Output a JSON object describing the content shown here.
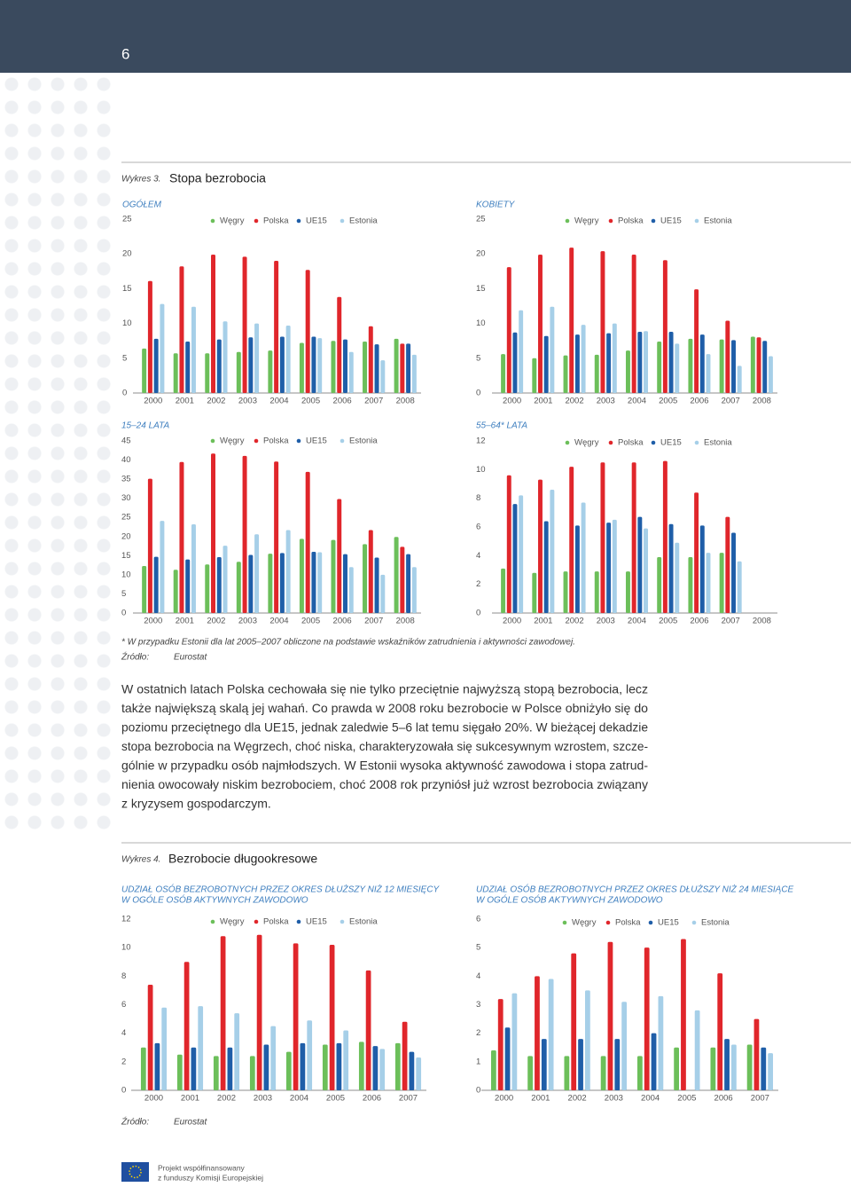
{
  "header": {
    "page_number": "6"
  },
  "figure3": {
    "label": "Wykres 3.",
    "title": "Stopa bezrobocia"
  },
  "chart_data": [
    {
      "type": "bar",
      "subtitle": [
        "OGÓŁEM"
      ],
      "categories": [
        "2000",
        "2001",
        "2002",
        "2003",
        "2004",
        "2005",
        "2006",
        "2007",
        "2008"
      ],
      "series": [
        {
          "name": "Węgry",
          "color": "#6cbf5a",
          "values": [
            6.4,
            5.7,
            5.7,
            5.9,
            6.1,
            7.2,
            7.5,
            7.4,
            7.8
          ]
        },
        {
          "name": "Polska",
          "color": "#e0262b",
          "values": [
            16.1,
            18.2,
            19.9,
            19.6,
            19.0,
            17.7,
            13.8,
            9.6,
            7.1
          ]
        },
        {
          "name": "UE15",
          "color": "#1f5ea8",
          "values": [
            7.8,
            7.4,
            7.7,
            8.0,
            8.1,
            8.1,
            7.7,
            7.0,
            7.1
          ]
        },
        {
          "name": "Estonia",
          "color": "#a6cfe8",
          "values": [
            12.8,
            12.4,
            10.3,
            10.0,
            9.7,
            7.9,
            5.9,
            4.7,
            5.5
          ]
        }
      ],
      "ylim": [
        0,
        25
      ],
      "yticks": [
        0,
        5,
        10,
        15,
        20,
        25
      ]
    },
    {
      "type": "bar",
      "subtitle": [
        "KOBIETY"
      ],
      "categories": [
        "2000",
        "2001",
        "2002",
        "2003",
        "2004",
        "2005",
        "2006",
        "2007",
        "2008"
      ],
      "series": [
        {
          "name": "Węgry",
          "color": "#6cbf5a",
          "values": [
            5.6,
            5.0,
            5.4,
            5.5,
            6.1,
            7.4,
            7.8,
            7.7,
            8.1
          ]
        },
        {
          "name": "Polska",
          "color": "#e0262b",
          "values": [
            18.1,
            19.9,
            20.9,
            20.4,
            19.9,
            19.1,
            14.9,
            10.4,
            8.0
          ]
        },
        {
          "name": "UE15",
          "color": "#1f5ea8",
          "values": [
            8.7,
            8.2,
            8.4,
            8.6,
            8.8,
            8.8,
            8.4,
            7.6,
            7.5
          ]
        },
        {
          "name": "Estonia",
          "color": "#a6cfe8",
          "values": [
            11.9,
            12.4,
            9.8,
            10.0,
            8.9,
            7.1,
            5.6,
            3.9,
            5.3
          ]
        }
      ],
      "ylim": [
        0,
        25
      ],
      "yticks": [
        0,
        5,
        10,
        15,
        20,
        25
      ]
    },
    {
      "type": "bar",
      "subtitle": [
        "15–24 LATA"
      ],
      "categories": [
        "2000",
        "2001",
        "2002",
        "2003",
        "2004",
        "2005",
        "2006",
        "2007",
        "2008"
      ],
      "series": [
        {
          "name": "Węgry",
          "color": "#6cbf5a",
          "values": [
            12.3,
            11.3,
            12.7,
            13.4,
            15.5,
            19.4,
            19.1,
            18.0,
            19.9
          ]
        },
        {
          "name": "Polska",
          "color": "#e0262b",
          "values": [
            35.1,
            39.5,
            41.7,
            41.1,
            39.6,
            36.9,
            29.8,
            21.7,
            17.3
          ]
        },
        {
          "name": "UE15",
          "color": "#1f5ea8",
          "values": [
            14.7,
            14.0,
            14.6,
            15.2,
            15.7,
            16.0,
            15.4,
            14.5,
            15.4
          ]
        },
        {
          "name": "Estonia",
          "color": "#a6cfe8",
          "values": [
            24.1,
            23.2,
            17.6,
            20.6,
            21.7,
            15.9,
            12.0,
            10.0,
            12.0
          ]
        }
      ],
      "ylim": [
        0,
        45
      ],
      "yticks": [
        0,
        5,
        10,
        15,
        20,
        25,
        30,
        35,
        40,
        45
      ]
    },
    {
      "type": "bar",
      "subtitle": [
        "55–64* LATA"
      ],
      "categories": [
        "2000",
        "2001",
        "2002",
        "2003",
        "2004",
        "2005",
        "2006",
        "2007",
        "2008"
      ],
      "series": [
        {
          "name": "Węgry",
          "color": "#6cbf5a",
          "values": [
            3.1,
            2.8,
            2.9,
            2.9,
            2.9,
            3.9,
            3.9,
            4.2,
            null
          ]
        },
        {
          "name": "Polska",
          "color": "#e0262b",
          "values": [
            9.6,
            9.3,
            10.2,
            10.5,
            10.5,
            10.6,
            8.4,
            6.7,
            null
          ]
        },
        {
          "name": "UE15",
          "color": "#1f5ea8",
          "values": [
            7.6,
            6.4,
            6.1,
            6.3,
            6.7,
            6.2,
            6.1,
            5.6,
            null
          ]
        },
        {
          "name": "Estonia",
          "color": "#a6cfe8",
          "values": [
            8.2,
            8.6,
            7.7,
            6.5,
            5.9,
            4.9,
            4.2,
            3.6,
            null
          ]
        }
      ],
      "ylim": [
        0,
        12
      ],
      "yticks": [
        0,
        2,
        4,
        6,
        8,
        10,
        12
      ]
    },
    {
      "type": "bar",
      "subtitle": [
        "UDZIAŁ OSÓB BEZROBOTNYCH PRZEZ OKRES DŁUŻSZY NIŻ 12 MIESIĘCY",
        "W OGÓLE OSÓB AKTYWNYCH ZAWODOWO"
      ],
      "categories": [
        "2000",
        "2001",
        "2002",
        "2003",
        "2004",
        "2005",
        "2006",
        "2007"
      ],
      "series": [
        {
          "name": "Węgry",
          "color": "#6cbf5a",
          "values": [
            3.0,
            2.5,
            2.4,
            2.4,
            2.7,
            3.2,
            3.4,
            3.3
          ]
        },
        {
          "name": "Polska",
          "color": "#e0262b",
          "values": [
            7.4,
            9.0,
            10.8,
            10.9,
            10.3,
            10.2,
            8.4,
            4.8
          ]
        },
        {
          "name": "UE15",
          "color": "#1f5ea8",
          "values": [
            3.3,
            3.0,
            3.0,
            3.2,
            3.3,
            3.3,
            3.1,
            2.7
          ]
        },
        {
          "name": "Estonia",
          "color": "#a6cfe8",
          "values": [
            5.8,
            5.9,
            5.4,
            4.5,
            4.9,
            4.2,
            2.9,
            2.3
          ]
        }
      ],
      "ylim": [
        0,
        12
      ],
      "yticks": [
        0,
        2,
        4,
        6,
        8,
        10,
        12
      ]
    },
    {
      "type": "bar",
      "subtitle": [
        "UDZIAŁ OSÓB BEZROBOTNYCH PRZEZ OKRES DŁUŻSZY NIŻ 24 MIESIĄCE",
        "W OGÓLE OSÓB AKTYWNYCH ZAWODOWO"
      ],
      "categories": [
        "2000",
        "2001",
        "2002",
        "2003",
        "2004",
        "2005",
        "2006",
        "2007"
      ],
      "series": [
        {
          "name": "Węgry",
          "color": "#6cbf5a",
          "values": [
            1.4,
            1.2,
            1.2,
            1.2,
            1.2,
            1.5,
            1.5,
            1.6
          ]
        },
        {
          "name": "Polska",
          "color": "#e0262b",
          "values": [
            3.2,
            4.0,
            4.8,
            5.2,
            5.0,
            5.3,
            4.1,
            2.5
          ]
        },
        {
          "name": "UE15",
          "color": "#1f5ea8",
          "values": [
            2.2,
            1.8,
            1.8,
            1.8,
            2.0,
            null,
            1.8,
            1.5
          ]
        },
        {
          "name": "Estonia",
          "color": "#a6cfe8",
          "values": [
            3.4,
            3.9,
            3.5,
            3.1,
            3.3,
            2.8,
            1.6,
            1.3
          ]
        }
      ],
      "ylim": [
        0,
        6
      ],
      "yticks": [
        0,
        1,
        2,
        3,
        4,
        5,
        6
      ]
    }
  ],
  "footnote": "* W przypadku Estonii dla lat 2005–2007 obliczone na podstawie wskaźników zatrudnienia i aktywności zawodowej.",
  "source1": {
    "label": "Źródło:",
    "value": "Eurostat"
  },
  "paragraph": [
    "W ostatnich latach Polska cechowała się nie tylko przeciętnie najwyższą stopą bezrobocia, lecz",
    "także największą skalą jej wahań. Co prawda w 2008 roku bezrobocie w Polsce obniżyło się do",
    "poziomu przeciętnego dla UE15, jednak zaledwie 5–6 lat temu sięgało 20%. W bieżącej dekadzie",
    "stopa bezrobocia na Węgrzech, choć niska, charakteryzowała się sukcesywnym wzrostem, szcze-",
    "gólnie w przypadku osób najmłodszych. W Estonii wysoka aktywność zawodowa i stopa zatrud-",
    "nienia owocowały niskim bezrobociem, choć 2008 rok przyniósł już wzrost bezrobocia związany",
    "z kryzysem gospodarczym."
  ],
  "figure4": {
    "label": "Wykres 4.",
    "title": "Bezrobocie długookresowe"
  },
  "source2": {
    "label": "Źródło:",
    "value": "Eurostat"
  },
  "footer": [
    "Projekt współfinansowany",
    "z funduszy Komisji Europejskiej"
  ]
}
